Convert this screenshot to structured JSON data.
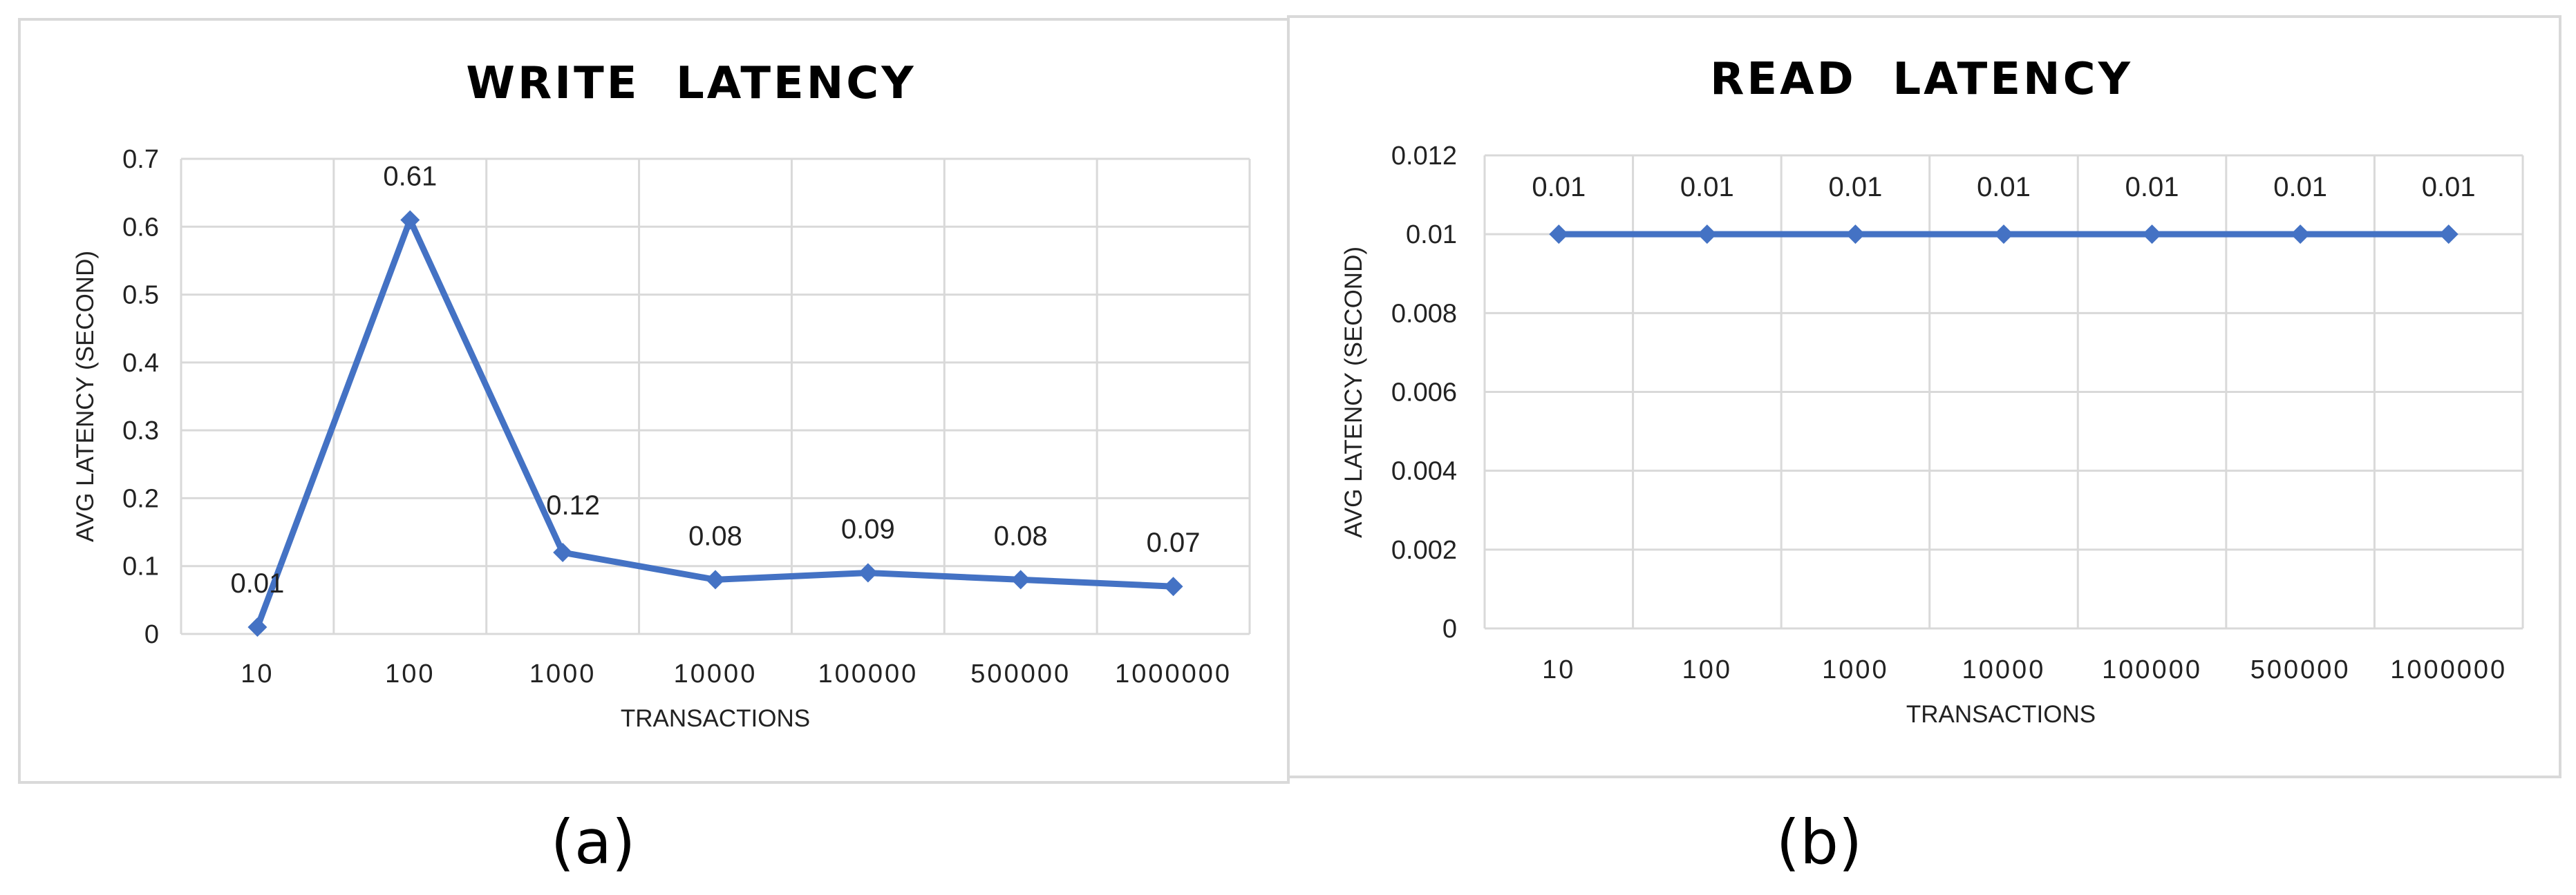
{
  "chart_data": [
    {
      "type": "line",
      "title": "WRITE  LATENCY",
      "xlabel": "TRANSACTIONS",
      "ylabel": "AVG LATENCY (SECOND)",
      "categories": [
        "10",
        "100",
        "1000",
        "10000",
        "100000",
        "500000",
        "1000000"
      ],
      "series": [
        {
          "values": [
            0.01,
            0.61,
            0.12,
            0.08,
            0.09,
            0.08,
            0.07
          ],
          "labels": [
            "0.01",
            "0.61",
            "0.12",
            "0.08",
            "0.09",
            "0.08",
            "0.07"
          ]
        }
      ],
      "ylim": [
        0,
        0.7
      ],
      "yticks": [
        "0",
        "0.1",
        "0.2",
        "0.3",
        "0.4",
        "0.5",
        "0.6",
        "0.7"
      ],
      "grid": true,
      "legend": "none",
      "line_color": "#4472C4",
      "caption": "(a)"
    },
    {
      "type": "line",
      "title": "READ  LATENCY",
      "xlabel": "TRANSACTIONS",
      "ylabel": "AVG LATENCY (SECOND)",
      "categories": [
        "10",
        "100",
        "1000",
        "10000",
        "100000",
        "500000",
        "1000000"
      ],
      "series": [
        {
          "values": [
            0.01,
            0.01,
            0.01,
            0.01,
            0.01,
            0.01,
            0.01
          ],
          "labels": [
            "0.01",
            "0.01",
            "0.01",
            "0.01",
            "0.01",
            "0.01",
            "0.01"
          ]
        }
      ],
      "ylim": [
        0,
        0.012
      ],
      "yticks": [
        "0",
        "0.002",
        "0.004",
        "0.006",
        "0.008",
        "0.01",
        "0.012"
      ],
      "grid": true,
      "legend": "none",
      "line_color": "#4472C4",
      "caption": "(b)"
    }
  ]
}
